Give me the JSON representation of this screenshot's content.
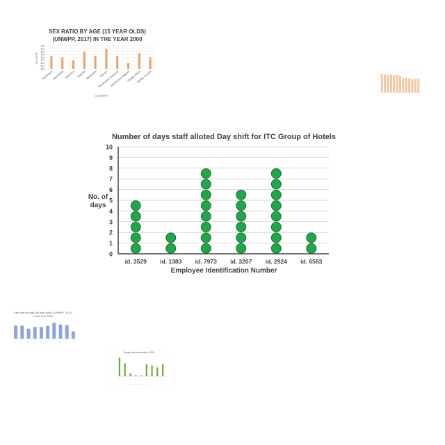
{
  "chart_data": [
    {
      "type": "scatter",
      "subtype": "dot-plot",
      "title": "Number of days staff alloted Day shift for ITC Group of Hotels",
      "xlabel": "Employee Identification Number",
      "ylabel": "No. of days",
      "categories": [
        "id. 3529",
        "id. 1383",
        "id. 7973",
        "id. 3207",
        "id. 2924",
        "id. 6583"
      ],
      "values": [
        5,
        2,
        8,
        6,
        8,
        2
      ],
      "yticks": [
        "0",
        "1",
        "2",
        "3",
        "4",
        "5",
        "6",
        "7",
        "8",
        "9",
        "10"
      ],
      "ylim": [
        0,
        10
      ],
      "grid": true,
      "colors": {
        "dot": "#21a649",
        "dot_stroke": "#156b2c",
        "grid": "#d9d9d9",
        "axis": "#404040"
      }
    },
    {
      "type": "bar",
      "title": "SEX RATIO BY AGE (15 YEAR OLDS) (UNWPP, 2017) IN THE YEAR 2000",
      "xlabel": "COUNTRY",
      "ylabel": "SEX RATIO",
      "categories": [
        "Martinique",
        "Mauritania",
        "Mauritius",
        "Mayotte",
        "Melanesia",
        "Mexico",
        "Micronesia (country)",
        "Micronesia (region)",
        "Middle Africa",
        "Middle income"
      ],
      "values": [
        104.5,
        104,
        103,
        106,
        104.5,
        107,
        104.5,
        102,
        105.5,
        104
      ],
      "yticks": [
        "100",
        "101",
        "102",
        "103",
        "104",
        "105",
        "106",
        "107",
        "108"
      ],
      "ylim": [
        100,
        108
      ],
      "colors": {
        "bar": "#e8a06a"
      }
    },
    {
      "type": "bar",
      "values": [
        1.0,
        0.96,
        0.94,
        0.95,
        0.93,
        0.95,
        0.9,
        0.78,
        0.79,
        0.75,
        0.72,
        0.73,
        0.74
      ],
      "colors": {
        "bar": "#f4c7a3"
      }
    },
    {
      "type": "bar",
      "title": "Sex ratio by age (80 year olds) (UNWPP, 2017) in the Year 2000",
      "values": [
        0.72,
        0.72,
        0.55,
        0.64,
        0.64,
        0.7,
        0.87,
        0.78,
        0.75,
        0.4
      ],
      "colors": {
        "bar": "#8fa5d9"
      }
    },
    {
      "type": "bar",
      "title": "People with dementia in 2000",
      "values": [
        0.95,
        0.66,
        0.15,
        0.05,
        0.02,
        0.62,
        0.55,
        0.45,
        0.62
      ],
      "colors": {
        "bar": "#6aaa3a"
      }
    }
  ]
}
